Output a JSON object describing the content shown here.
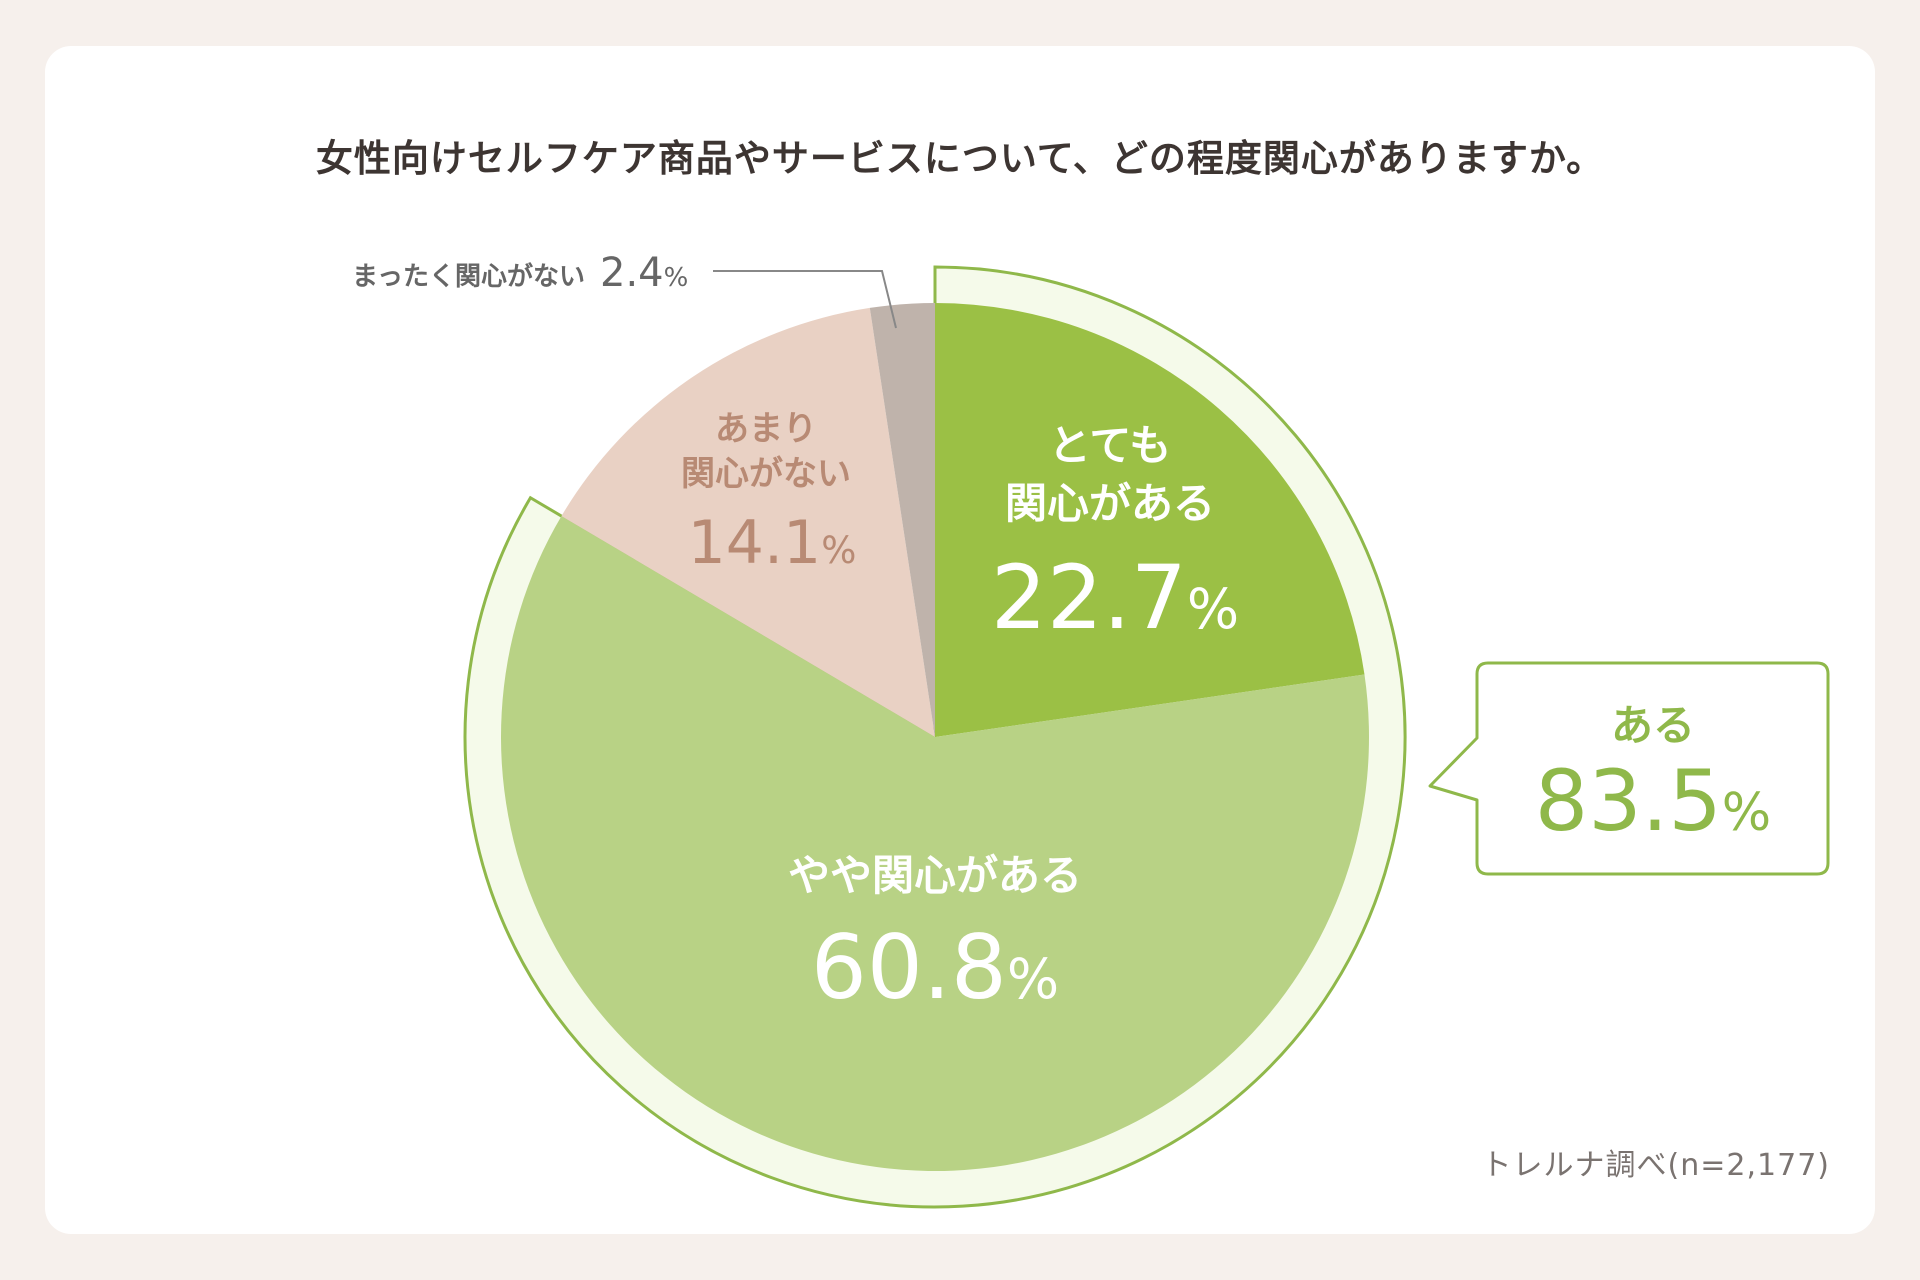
{
  "title": "女性向けセルフケア商品やサービスについて、どの程度関心がありますか。",
  "source": "トレルナ調べ(n=2,177)",
  "colors": {
    "very": "#9bc045",
    "somewhat": "#b8d285",
    "not_much": "#e9d1c4",
    "not_at_all": "#bfb3ab",
    "highlight_ring": "#f5faea",
    "highlight_border": "#8fb84a",
    "callout_text": "#8fb84a",
    "not_much_text": "#b88a74",
    "dark_text": "#666666"
  },
  "chart_data": {
    "type": "pie",
    "title": "女性向けセルフケア商品やサービスについて、どの程度関心がありますか。",
    "unit": "%",
    "slices": [
      {
        "label": "とても関心がある",
        "value": 22.7,
        "value_text": "22.7",
        "color": "#9bc045"
      },
      {
        "label": "やや関心がある",
        "value": 60.8,
        "value_text": "60.8",
        "color": "#b8d285"
      },
      {
        "label": "あまり関心がない",
        "value": 14.1,
        "value_text": "14.1",
        "color": "#e9d1c4"
      },
      {
        "label": "まったく関心がない",
        "value": 2.4,
        "value_text": "2.4",
        "color": "#bfb3ab"
      }
    ],
    "label_lines": {
      "とても関心がある": [
        "とても",
        "関心がある"
      ],
      "やや関心がある": [
        "やや関心がある"
      ],
      "あまり関心がない": [
        "あまり",
        "関心がない"
      ],
      "まったく関心がない": [
        "まったく関心がない"
      ]
    },
    "callout": {
      "label": "ある",
      "value": 83.5,
      "value_text": "83.5"
    }
  }
}
